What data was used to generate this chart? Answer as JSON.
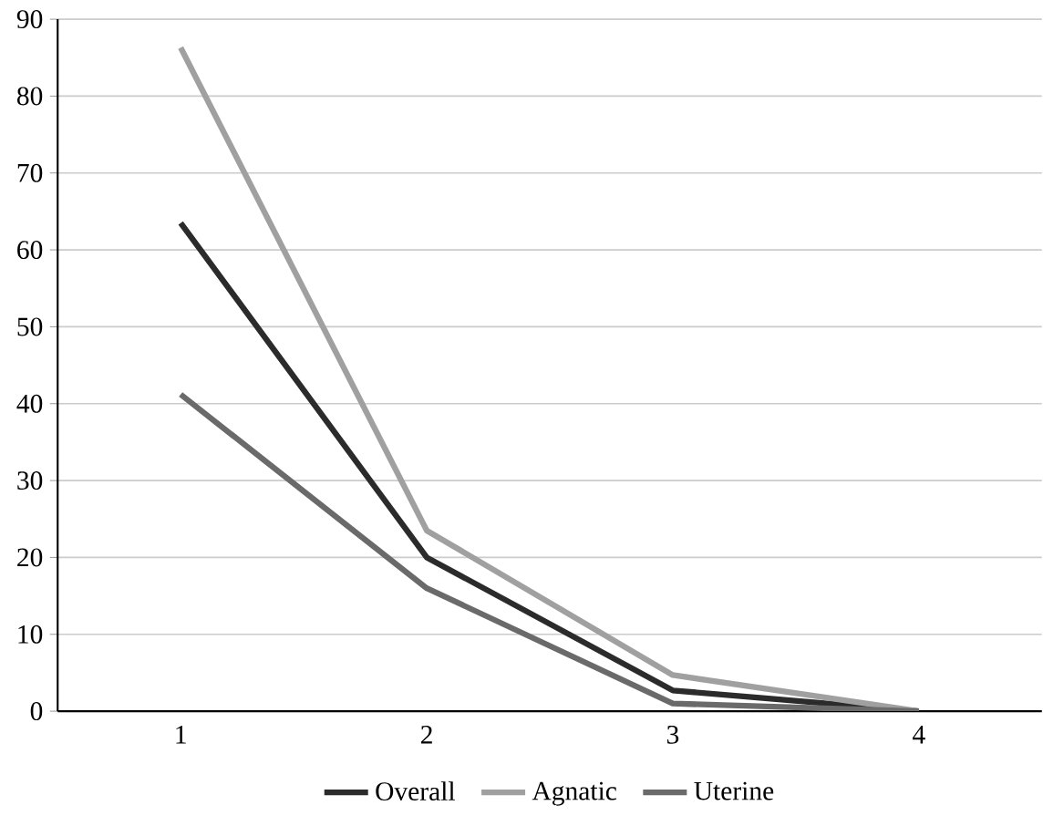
{
  "chart_data": {
    "type": "line",
    "categories": [
      "1",
      "2",
      "3",
      "4"
    ],
    "series": [
      {
        "name": "Overall",
        "color": "#2b2b2b",
        "values": [
          63.5,
          20,
          2.7,
          0
        ]
      },
      {
        "name": "Agnatic",
        "color": "#a0a0a0",
        "values": [
          86.3,
          23.5,
          4.7,
          0
        ]
      },
      {
        "name": "Uterine",
        "color": "#6a6a6a",
        "values": [
          41.2,
          16,
          1,
          0
        ]
      }
    ],
    "ylim": [
      0,
      90
    ],
    "yticks": [
      0,
      10,
      20,
      30,
      40,
      50,
      60,
      70,
      80,
      90
    ],
    "grid": "y",
    "legend": "bottom",
    "marker": "none",
    "line_style": "solid"
  }
}
